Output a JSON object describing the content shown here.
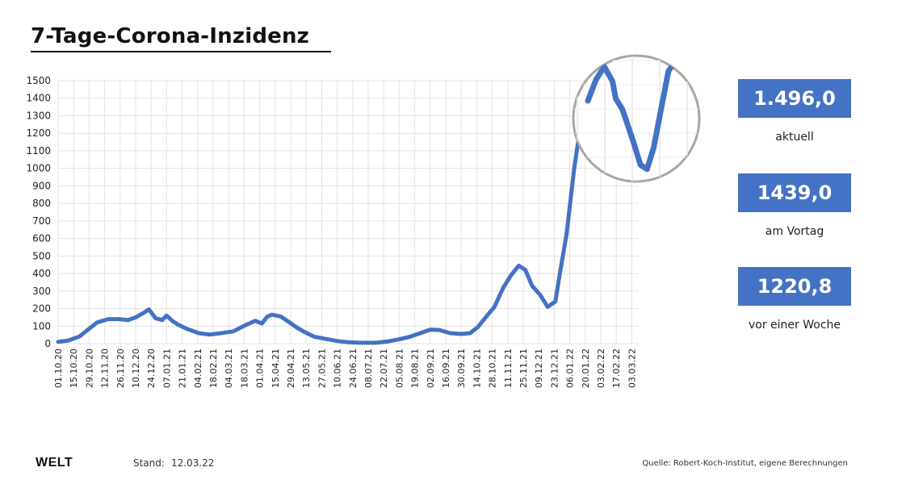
{
  "chart_data": {
    "type": "line",
    "title": "7-Tage-Corona-Inzidenz",
    "ylim": [
      0,
      1500
    ],
    "yticks": [
      0,
      100,
      200,
      300,
      400,
      500,
      600,
      700,
      800,
      900,
      1000,
      1100,
      1200,
      1300,
      1400,
      1500
    ],
    "x_tick_labels": [
      "01.10.20",
      "15.10.20",
      "29.10.20",
      "12.11.20",
      "26.11.20",
      "10.12.20",
      "24.12.20",
      "07.01.21",
      "21.01.21",
      "04.02.21",
      "18.02.21",
      "04.03.21",
      "18.03.21",
      "01.04.21",
      "15.04.21",
      "29.04.21",
      "13.05.21",
      "27.05.21",
      "10.06.21",
      "24.06.21",
      "08.07.21",
      "22.07.21",
      "05.08.21",
      "19.08.21",
      "02.09.21",
      "16.09.21",
      "30.09.21",
      "14.10.21",
      "28.10.21",
      "11.11.21",
      "25.11.21",
      "09.12.21",
      "23.12.21",
      "06.01.22",
      "20.01.22",
      "03.02.22",
      "17.02.22",
      "03.03.22"
    ],
    "line_color": "#4472c4",
    "grid": true,
    "series": [
      {
        "x": [
          "2020-10-01",
          "2020-10-10",
          "2020-10-20",
          "2020-10-28",
          "2020-11-05",
          "2020-11-15",
          "2020-11-25",
          "2020-12-03",
          "2020-12-10",
          "2020-12-17",
          "2020-12-22",
          "2020-12-28",
          "2021-01-03",
          "2021-01-07",
          "2021-01-12",
          "2021-01-17",
          "2021-01-25",
          "2021-02-05",
          "2021-02-15",
          "2021-02-25",
          "2021-03-08",
          "2021-03-20",
          "2021-03-28",
          "2021-04-03",
          "2021-04-08",
          "2021-04-12",
          "2021-04-20",
          "2021-04-27",
          "2021-05-05",
          "2021-05-12",
          "2021-05-20",
          "2021-05-30",
          "2021-06-10",
          "2021-06-20",
          "2021-07-01",
          "2021-07-15",
          "2021-07-25",
          "2021-08-05",
          "2021-08-15",
          "2021-08-25",
          "2021-09-02",
          "2021-09-10",
          "2021-09-20",
          "2021-09-30",
          "2021-10-08",
          "2021-10-15",
          "2021-10-22",
          "2021-10-30",
          "2021-11-07",
          "2021-11-14",
          "2021-11-21",
          "2021-11-27",
          "2021-12-03",
          "2021-12-10",
          "2021-12-17",
          "2021-12-24",
          "2021-12-28",
          "2022-01-03",
          "2022-01-10",
          "2022-01-17",
          "2022-01-22",
          "2022-01-27",
          "2022-02-01",
          "2022-02-03",
          "2022-02-07",
          "2022-02-11",
          "2022-02-14",
          "2022-02-18",
          "2022-02-22",
          "2022-02-26",
          "2022-03-02",
          "2022-03-07",
          "2022-03-12"
        ],
        "y": [
          10,
          18,
          40,
          80,
          120,
          140,
          140,
          135,
          150,
          175,
          195,
          145,
          135,
          160,
          130,
          110,
          85,
          60,
          52,
          60,
          70,
          108,
          130,
          115,
          155,
          165,
          155,
          125,
          90,
          65,
          40,
          28,
          15,
          8,
          5,
          5,
          12,
          25,
          40,
          62,
          80,
          78,
          60,
          55,
          60,
          95,
          150,
          210,
          320,
          390,
          445,
          420,
          330,
          280,
          210,
          240,
          400,
          620,
          1000,
          1300,
          1400,
          1460,
          1390,
          1310,
          1260,
          1170,
          1100,
          1000,
          980,
          1080,
          1240,
          1439,
          1496
        ]
      }
    ]
  },
  "stats": [
    {
      "value": "1.496,0",
      "label": "aktuell"
    },
    {
      "value": "1439,0",
      "label": "am Vortag"
    },
    {
      "value": "1220,8",
      "label": "vor einer Woche"
    }
  ],
  "footer": {
    "logo": "WELT",
    "stand_label": "Stand:",
    "stand_date": "12.03.22",
    "source": "Quelle: Robert-Koch-Institut, eigene Berechnungen"
  }
}
